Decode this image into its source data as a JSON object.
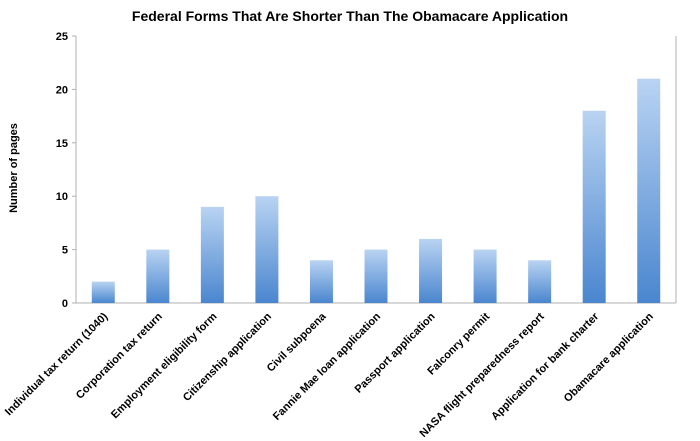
{
  "chart_data": {
    "type": "bar",
    "title": "Federal Forms That Are Shorter Than The Obamacare Application",
    "xlabel": "",
    "ylabel": "Number of pages",
    "ylim": [
      0,
      25
    ],
    "yticks": [
      0,
      5,
      10,
      15,
      20,
      25
    ],
    "grid": false,
    "categories": [
      "Individual tax return (1040)",
      "Corporation tax return",
      "Employment eligibility form",
      "Citizenship application",
      "Civil subpoena",
      "Fannie Mae loan application",
      "Passport application",
      "Falconry permit",
      "NASA flight preparedness report",
      "Application for bank charter",
      "Obamacare application"
    ],
    "values": [
      2,
      5,
      9,
      10,
      4,
      5,
      6,
      5,
      4,
      18,
      21
    ],
    "colors": {
      "bar_top": "#b9d3f2",
      "bar_bottom": "#4a86cf",
      "axis": "#b0b0b0"
    }
  }
}
